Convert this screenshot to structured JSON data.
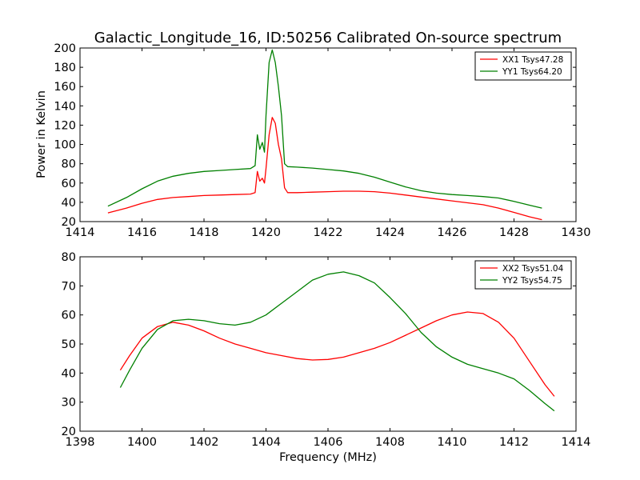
{
  "chart_data": [
    {
      "type": "line",
      "title": "Galactic_Longitude_16, ID:50256 Calibrated On-source spectrum",
      "xlabel": "",
      "ylabel": "Power in Kelvin",
      "xlim": [
        1414,
        1430
      ],
      "ylim": [
        20,
        200
      ],
      "xticks": [
        "1414",
        "1416",
        "1418",
        "1420",
        "1422",
        "1424",
        "1426",
        "1428",
        "1430"
      ],
      "yticks": [
        "20",
        "40",
        "60",
        "80",
        "100",
        "120",
        "140",
        "160",
        "180",
        "200"
      ],
      "grid": false,
      "legend_position": "top-right",
      "series": [
        {
          "name": "XX1 Tsys47.28",
          "color": "#ff0000",
          "x": [
            1414.9,
            1415.5,
            1416.0,
            1416.5,
            1417.0,
            1417.5,
            1418.0,
            1418.5,
            1419.0,
            1419.5,
            1419.65,
            1419.72,
            1419.8,
            1419.88,
            1419.95,
            1420.0,
            1420.1,
            1420.2,
            1420.3,
            1420.4,
            1420.5,
            1420.6,
            1420.7,
            1421.0,
            1421.5,
            1422.0,
            1422.5,
            1423.0,
            1423.5,
            1424.0,
            1424.5,
            1425.0,
            1425.5,
            1426.0,
            1426.5,
            1427.0,
            1427.5,
            1428.0,
            1428.5,
            1428.9
          ],
          "y": [
            29,
            34,
            39,
            43,
            45,
            46,
            47,
            47.5,
            48,
            48.5,
            50,
            72,
            62,
            65,
            60,
            75,
            110,
            128,
            122,
            100,
            85,
            55,
            50,
            50,
            50.5,
            51,
            51.5,
            51.5,
            51,
            49.5,
            47.5,
            45.5,
            43.5,
            41.5,
            39.5,
            37.5,
            34,
            29.5,
            25,
            22
          ]
        },
        {
          "name": "YY1 Tsys64.20",
          "color": "#008000",
          "x": [
            1414.9,
            1415.5,
            1416.0,
            1416.5,
            1417.0,
            1417.5,
            1418.0,
            1418.5,
            1419.0,
            1419.5,
            1419.65,
            1419.72,
            1419.8,
            1419.88,
            1419.95,
            1420.0,
            1420.1,
            1420.2,
            1420.3,
            1420.4,
            1420.5,
            1420.6,
            1420.7,
            1421.0,
            1421.5,
            1422.0,
            1422.5,
            1423.0,
            1423.5,
            1424.0,
            1424.5,
            1425.0,
            1425.5,
            1426.0,
            1426.5,
            1427.0,
            1427.5,
            1428.0,
            1428.5,
            1428.9
          ],
          "y": [
            36,
            45,
            54,
            62,
            67,
            70,
            72,
            73,
            74,
            75,
            78,
            110,
            95,
            102,
            92,
            130,
            185,
            198,
            185,
            160,
            130,
            80,
            77,
            76.5,
            75.5,
            74,
            72.5,
            70,
            66,
            61,
            56,
            52,
            49.5,
            48,
            47,
            46,
            44.5,
            41,
            37,
            34
          ]
        }
      ]
    },
    {
      "type": "line",
      "title": "",
      "xlabel": "Frequency (MHz)",
      "ylabel": "",
      "xlim": [
        1398,
        1414
      ],
      "ylim": [
        20,
        80
      ],
      "xticks": [
        "1398",
        "1400",
        "1402",
        "1404",
        "1406",
        "1408",
        "1410",
        "1412",
        "1414"
      ],
      "yticks": [
        "20",
        "30",
        "40",
        "50",
        "60",
        "70",
        "80"
      ],
      "grid": false,
      "legend_position": "top-right",
      "series": [
        {
          "name": "XX2 Tsys51.04",
          "color": "#ff0000",
          "x": [
            1399.3,
            1399.6,
            1400.0,
            1400.5,
            1401.0,
            1401.5,
            1402.0,
            1402.5,
            1403.0,
            1403.5,
            1404.0,
            1404.5,
            1405.0,
            1405.5,
            1406.0,
            1406.5,
            1407.0,
            1407.5,
            1408.0,
            1408.5,
            1409.0,
            1409.5,
            1410.0,
            1410.5,
            1411.0,
            1411.5,
            1412.0,
            1412.5,
            1413.0,
            1413.3
          ],
          "y": [
            41,
            46,
            52,
            56,
            57.5,
            56.5,
            54.5,
            52,
            50,
            48.5,
            47,
            46,
            45,
            44.5,
            44.7,
            45.5,
            47,
            48.5,
            50.5,
            53,
            55.5,
            58,
            60,
            61,
            60.5,
            57.5,
            52,
            44,
            36,
            32
          ]
        },
        {
          "name": "YY2 Tsys54.75",
          "color": "#008000",
          "x": [
            1399.3,
            1399.6,
            1400.0,
            1400.5,
            1401.0,
            1401.5,
            1402.0,
            1402.5,
            1403.0,
            1403.5,
            1404.0,
            1404.5,
            1405.0,
            1405.5,
            1406.0,
            1406.5,
            1407.0,
            1407.5,
            1408.0,
            1408.5,
            1409.0,
            1409.5,
            1410.0,
            1410.5,
            1411.0,
            1411.5,
            1412.0,
            1412.5,
            1413.0,
            1413.3
          ],
          "y": [
            35,
            41,
            48.5,
            55,
            58,
            58.5,
            58,
            57,
            56.5,
            57.5,
            60,
            64,
            68,
            72,
            74,
            74.8,
            73.5,
            71,
            66,
            60.5,
            54,
            49,
            45.5,
            43,
            41.5,
            40,
            38,
            34,
            29.5,
            27
          ]
        }
      ]
    }
  ]
}
